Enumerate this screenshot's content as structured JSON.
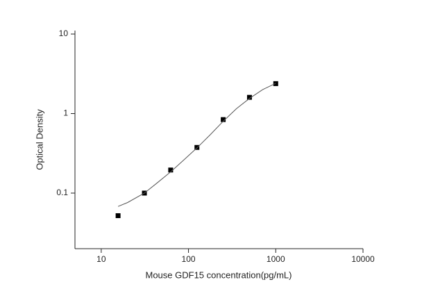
{
  "chart_data": {
    "type": "scatter",
    "x_label": "Mouse GDF15 concentration(pg/mL)",
    "y_label": "Optical Density",
    "xscale": "log",
    "yscale": "log",
    "xlim": [
      5,
      10000
    ],
    "ylim": [
      0.02,
      10
    ],
    "xticks": [
      10,
      100,
      1000,
      10000
    ],
    "yticks": [
      0.1,
      1,
      10
    ],
    "series": [
      {
        "style": "markers",
        "color": "#000000",
        "x": [
          15.6,
          31.25,
          62.5,
          125,
          250,
          500,
          1000
        ],
        "values": [
          0.052,
          0.1,
          0.195,
          0.375,
          0.84,
          1.6,
          2.38
        ]
      },
      {
        "style": "line",
        "color": "#555555",
        "x": [
          15.6,
          20,
          31.25,
          44,
          62.5,
          88,
          125,
          177,
          250,
          354,
          500,
          707,
          1000
        ],
        "values": [
          0.068,
          0.076,
          0.1,
          0.135,
          0.185,
          0.26,
          0.37,
          0.54,
          0.8,
          1.15,
          1.55,
          2.0,
          2.4
        ]
      }
    ]
  }
}
